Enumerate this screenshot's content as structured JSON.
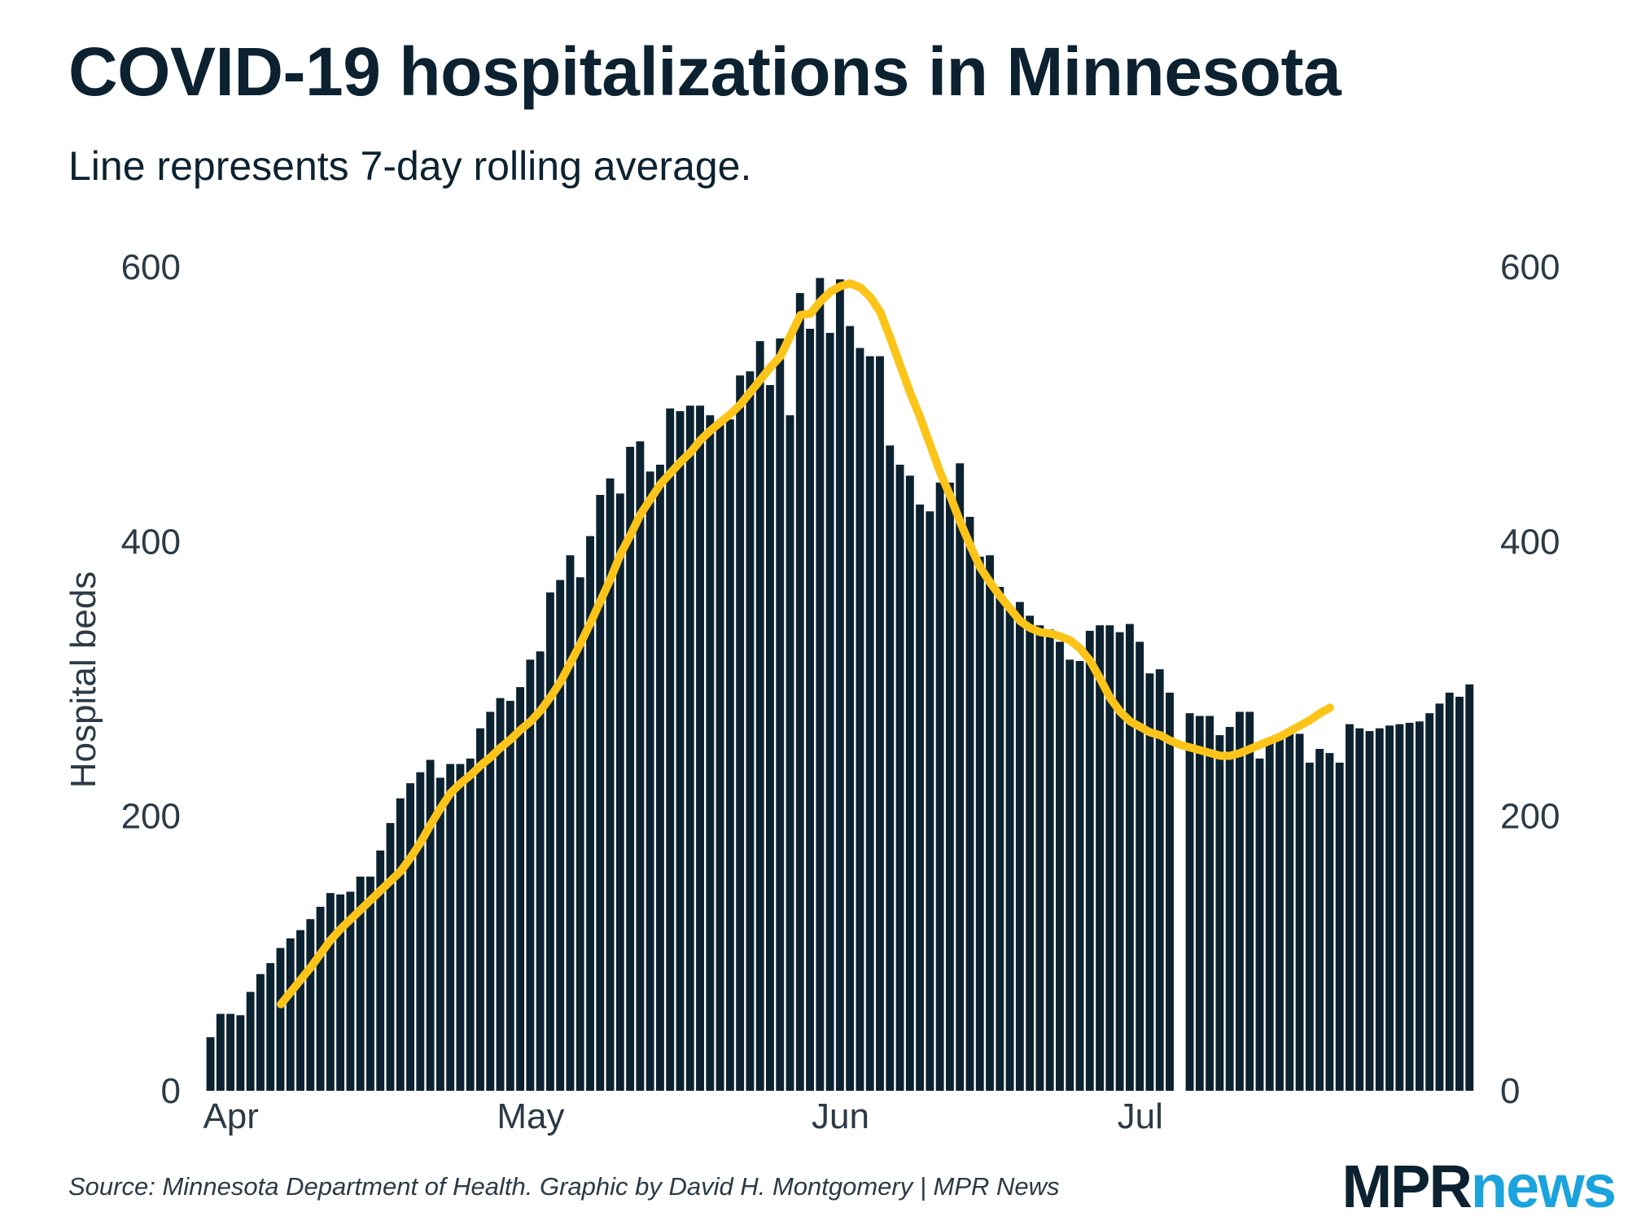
{
  "header": {
    "title": "COVID-19 hospitalizations in Minnesota",
    "subtitle": "Line represents 7-day rolling average."
  },
  "footer": {
    "source": "Source: Minnesota Department of Health. Graphic by David H. Montgomery | MPR News",
    "logo_part1": "MPR",
    "logo_part2": "news"
  },
  "colors": {
    "bars": "#0c2230",
    "line": "#fcc419",
    "text": "#0c2230",
    "axis_text": "#2b3a45",
    "logo_accent": "#1aa3dd"
  },
  "chart_data": {
    "type": "bar",
    "title": "COVID-19 hospitalizations in Minnesota",
    "subtitle": "Line represents 7-day rolling average.",
    "ylabel": "Hospital beds",
    "xlabel": "",
    "ylim": [
      0,
      600
    ],
    "yticks": [
      0,
      200,
      400,
      600
    ],
    "grid": false,
    "x_tick_labels": [
      {
        "label": "Apr",
        "day": 2
      },
      {
        "label": "May",
        "day": 32
      },
      {
        "label": "Jun",
        "day": 63
      },
      {
        "label": "Jul",
        "day": 93
      }
    ],
    "start_date": "Mar 31",
    "missing_days": [
      97
    ],
    "series": [
      {
        "name": "Hospital beds (daily)",
        "type": "bar",
        "values": [
          39,
          56,
          56,
          55,
          72,
          85,
          93,
          104,
          111,
          117,
          125,
          134,
          144,
          143,
          145,
          156,
          156,
          175,
          195,
          213,
          224,
          232,
          241,
          228,
          238,
          238,
          242,
          264,
          276,
          286,
          284,
          294,
          314,
          320,
          363,
          372,
          390,
          374,
          404,
          434,
          446,
          435,
          469,
          473,
          451,
          456,
          497,
          495,
          499,
          499,
          492,
          486,
          489,
          521,
          524,
          546,
          514,
          548,
          492,
          581,
          555,
          592,
          552,
          591,
          557,
          541,
          535,
          535,
          470,
          456,
          448,
          427,
          422,
          443,
          443,
          457,
          418,
          389,
          390,
          367,
          351,
          356,
          346,
          339,
          336,
          327,
          314,
          313,
          335,
          339,
          339,
          334,
          340,
          327,
          304,
          307,
          290,
          275,
          273,
          273,
          259,
          265,
          276,
          276,
          242,
          256,
          259,
          260,
          260,
          239,
          249,
          246,
          239,
          267,
          264,
          262,
          264,
          266,
          267,
          268,
          269,
          275,
          282,
          290,
          287,
          296
        ]
      },
      {
        "name": "7-day rolling average",
        "type": "line",
        "start_day": 7,
        "values": [
          63,
          72,
          81,
          90,
          100,
          110,
          118,
          125,
          132,
          139,
          146,
          153,
          160,
          170,
          181,
          194,
          206,
          217,
          224,
          230,
          237,
          243,
          250,
          256,
          263,
          269,
          277,
          287,
          298,
          312,
          326,
          341,
          357,
          373,
          391,
          405,
          420,
          431,
          442,
          450,
          458,
          465,
          474,
          481,
          487,
          493,
          500,
          509,
          518,
          527,
          535,
          550,
          565,
          566,
          575,
          582,
          586,
          588,
          585,
          578,
          567,
          548,
          528,
          508,
          490,
          470,
          450,
          433,
          414,
          397,
          381,
          370,
          360,
          351,
          342,
          337,
          334,
          333,
          331,
          328,
          322,
          313,
          300,
          286,
          276,
          269,
          265,
          261,
          259,
          255,
          252,
          250,
          248,
          246,
          244,
          244,
          246,
          249,
          252,
          255,
          258,
          262,
          266,
          270,
          275,
          279
        ]
      }
    ]
  }
}
